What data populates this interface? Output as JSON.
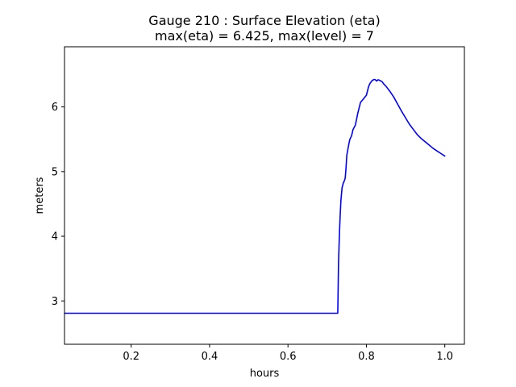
{
  "chart_data": {
    "type": "line",
    "title": "Gauge 210 : Surface Elevation (eta)",
    "subtitle": "max(eta) =   6.425,    max(level) = 7",
    "xlabel": "hours",
    "ylabel": "meters",
    "xlim": [
      0.03,
      1.05
    ],
    "ylim": [
      2.33,
      6.93
    ],
    "xticks": [
      {
        "value": 0.2,
        "label": "0.2"
      },
      {
        "value": 0.4,
        "label": "0.4"
      },
      {
        "value": 0.6,
        "label": "0.6"
      },
      {
        "value": 0.8,
        "label": "0.8"
      },
      {
        "value": 1.0,
        "label": "1.0"
      }
    ],
    "yticks": [
      {
        "value": 3,
        "label": "3"
      },
      {
        "value": 4,
        "label": "4"
      },
      {
        "value": 5,
        "label": "5"
      },
      {
        "value": 6,
        "label": "6"
      }
    ],
    "grid": false,
    "series": [
      {
        "color": "#0000ff",
        "x": [
          0.03,
          0.7,
          0.727,
          0.728,
          0.729,
          0.731,
          0.733,
          0.735,
          0.738,
          0.741,
          0.744,
          0.746,
          0.748,
          0.75,
          0.753,
          0.756,
          0.758,
          0.762,
          0.766,
          0.772,
          0.778,
          0.785,
          0.792,
          0.8,
          0.805,
          0.808,
          0.81,
          0.815,
          0.82,
          0.823,
          0.826,
          0.83,
          0.834,
          0.84,
          0.845,
          0.85,
          0.86,
          0.87,
          0.88,
          0.89,
          0.9,
          0.91,
          0.92,
          0.93,
          0.94,
          0.95,
          0.96,
          0.97,
          0.98,
          0.99,
          1.0
        ],
        "y": [
          2.81,
          2.81,
          2.81,
          3.2,
          3.6,
          4.0,
          4.3,
          4.55,
          4.75,
          4.82,
          4.86,
          4.9,
          5.05,
          5.25,
          5.35,
          5.45,
          5.5,
          5.55,
          5.65,
          5.72,
          5.9,
          6.07,
          6.12,
          6.18,
          6.3,
          6.35,
          6.37,
          6.41,
          6.425,
          6.42,
          6.4,
          6.42,
          6.41,
          6.39,
          6.35,
          6.32,
          6.24,
          6.15,
          6.04,
          5.93,
          5.83,
          5.73,
          5.65,
          5.57,
          5.51,
          5.46,
          5.41,
          5.36,
          5.32,
          5.28,
          5.24
        ]
      }
    ]
  }
}
